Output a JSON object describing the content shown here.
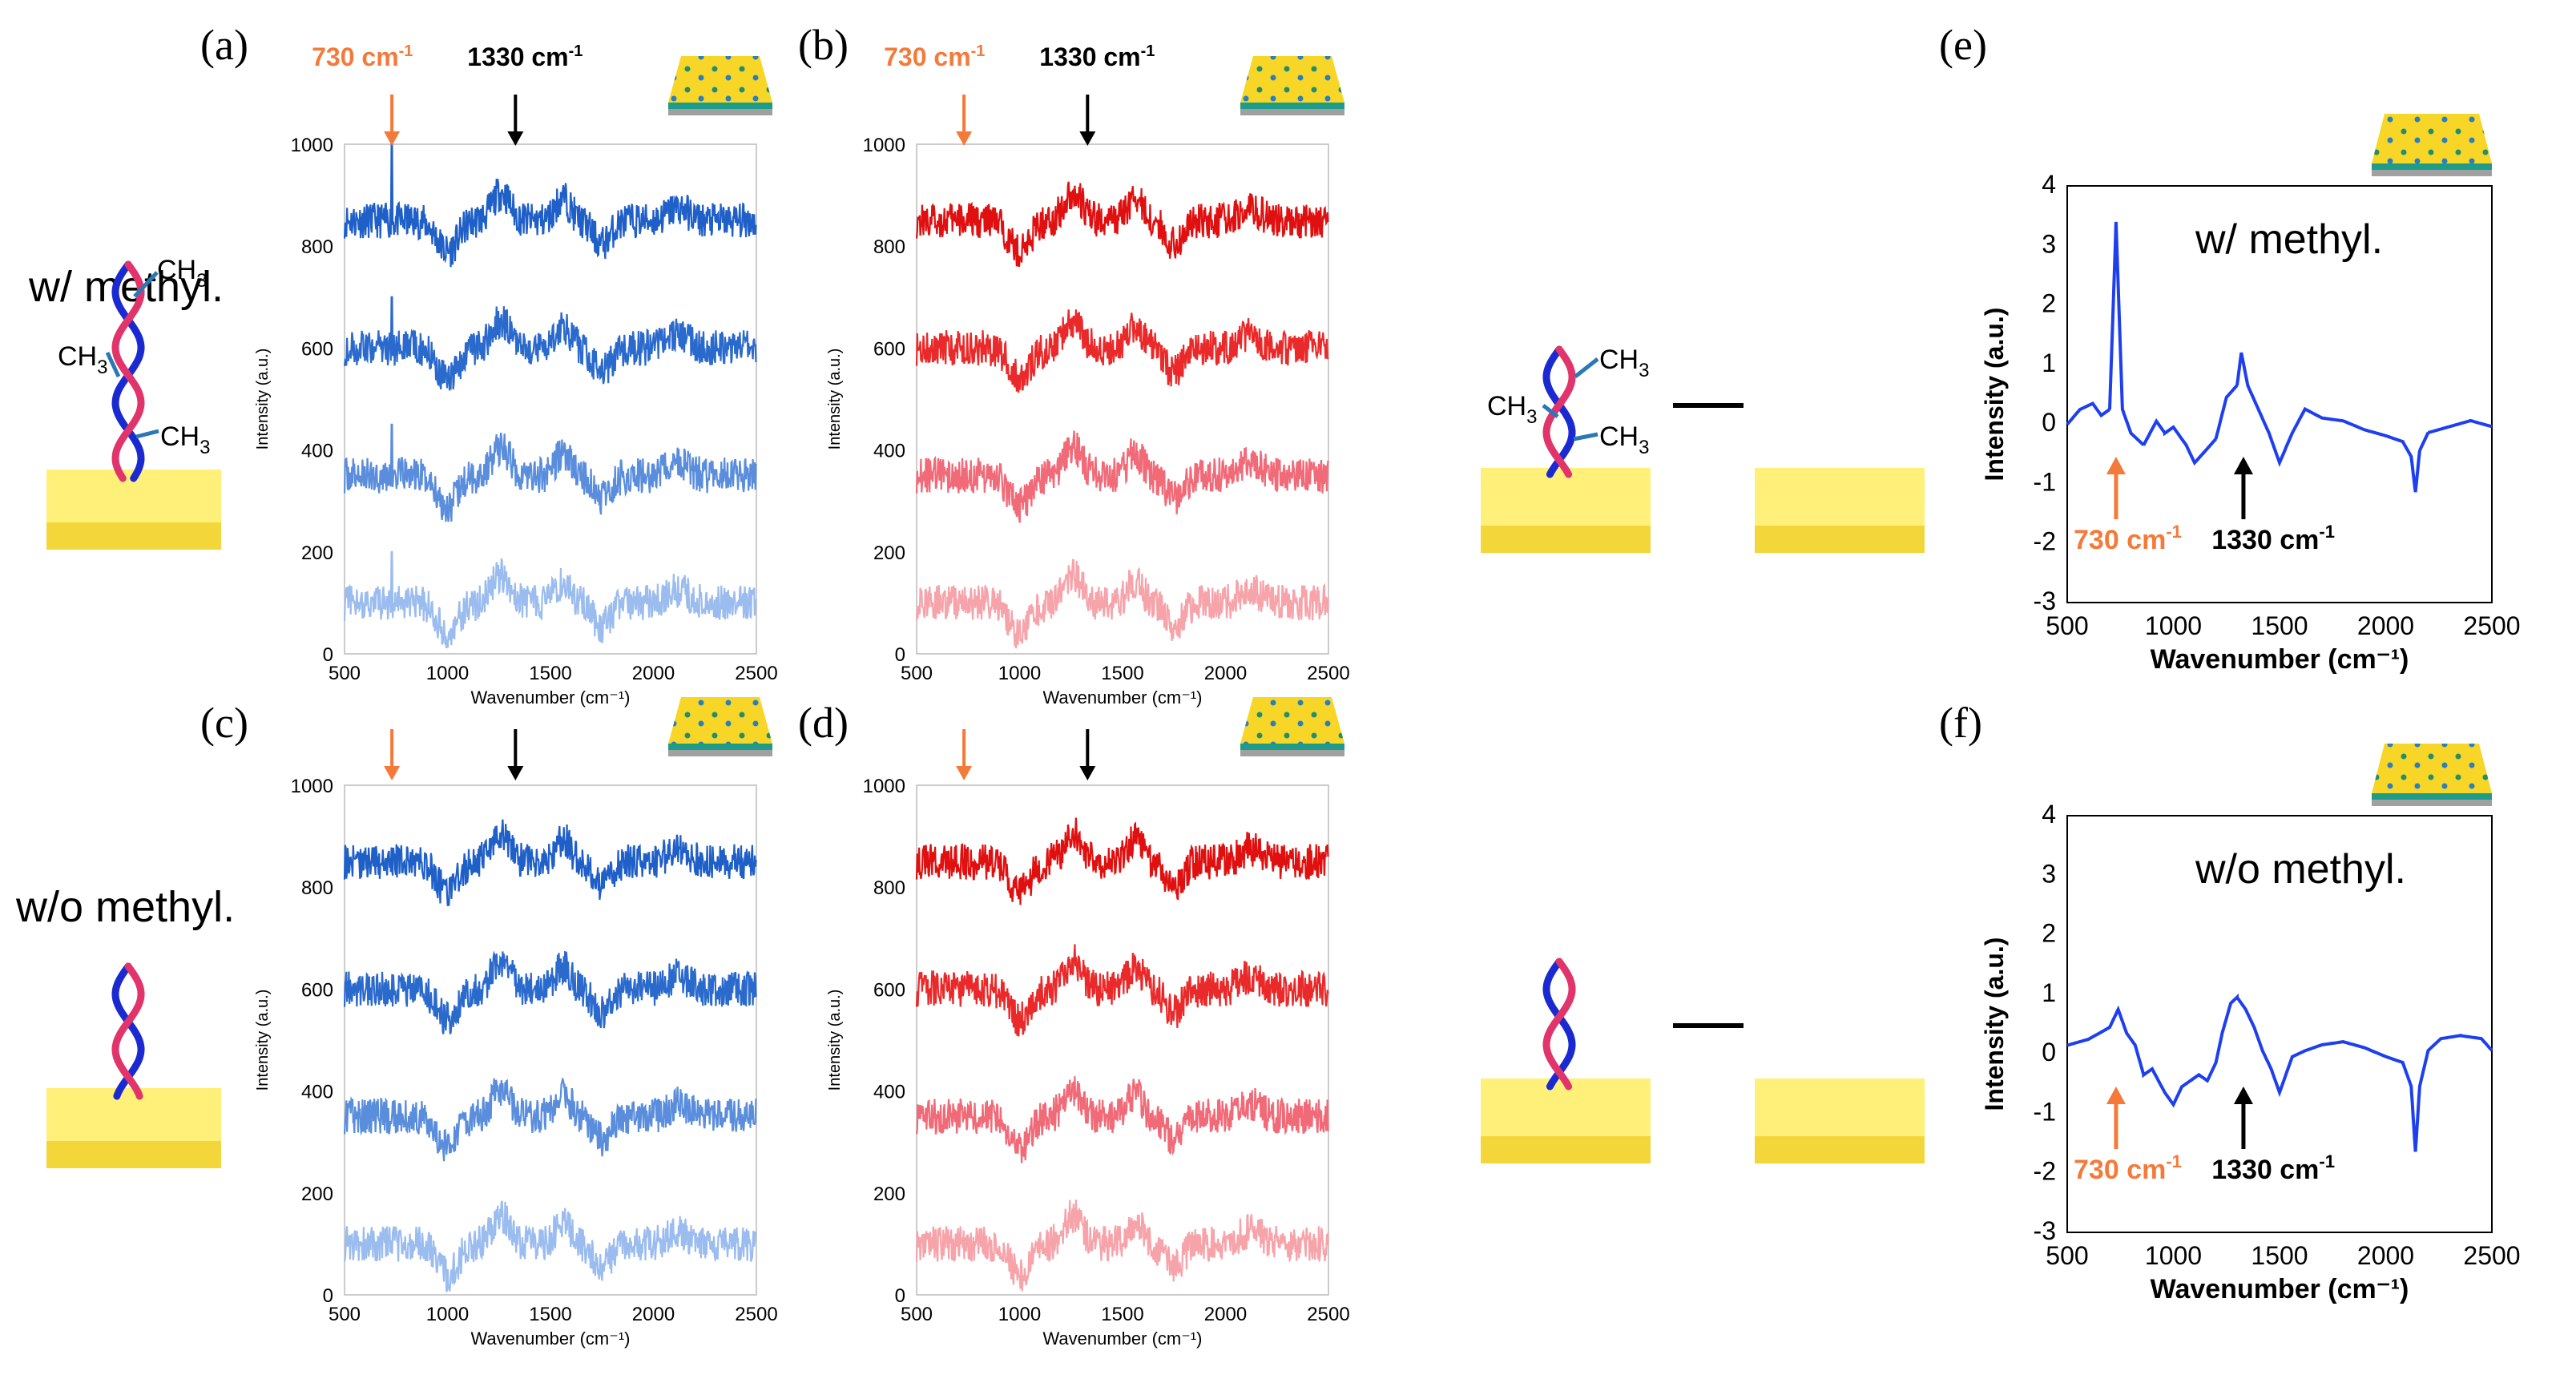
{
  "labels": {
    "with_methyl": "w/ methyl.",
    "without_methyl": "w/o methyl.",
    "ch3": "CH",
    "ch3_sub": "3",
    "peak_730": "730 cm",
    "peak_1330": "1330 cm",
    "peak_sup": "-1"
  },
  "colors": {
    "blue_dark": "#1f5fc8",
    "blue_mid": "#3a78d6",
    "blue_light": "#9bbcef",
    "red_dark": "#e01010",
    "red_mid": "#f04848",
    "red_light": "#f6a3aa",
    "diff_blue": "#1e3ff0",
    "orange": "#f47a3a",
    "gold": "#f7d94a",
    "gold_light": "#fff07a",
    "gold_dark": "#efcf2e"
  },
  "chart_data": [
    {
      "panel": "(a)",
      "type": "line",
      "xlabel": "Wavenumber (cm⁻¹)",
      "ylabel": "Intensity (a.u.)",
      "xlim": [
        500,
        2500
      ],
      "ylim": [
        0,
        1000
      ],
      "xticks": [
        "500",
        "1000",
        "1500",
        "2000",
        "2500"
      ],
      "yticks": [
        "0",
        "200",
        "400",
        "600",
        "800",
        "1000"
      ],
      "spike_at": 730,
      "series": [
        {
          "offset": 850,
          "color": "#1f5fc8"
        },
        {
          "offset": 600,
          "color": "#2b6acd"
        },
        {
          "offset": 350,
          "color": "#5a8edc"
        },
        {
          "offset": 100,
          "color": "#9bbcef"
        }
      ]
    },
    {
      "panel": "(b)",
      "type": "line",
      "xlabel": "Wavenumber (cm⁻¹)",
      "ylabel": "Intensity (a.u.)",
      "xlim": [
        500,
        2500
      ],
      "ylim": [
        0,
        1000
      ],
      "xticks": [
        "500",
        "1000",
        "1500",
        "2000",
        "2500"
      ],
      "yticks": [
        "0",
        "200",
        "400",
        "600",
        "800",
        "1000"
      ],
      "series": [
        {
          "offset": 850,
          "color": "#e01010"
        },
        {
          "offset": 600,
          "color": "#ea2a2a"
        },
        {
          "offset": 350,
          "color": "#f06a78"
        },
        {
          "offset": 100,
          "color": "#f6a3aa"
        }
      ]
    },
    {
      "panel": "(c)",
      "type": "line",
      "xlabel": "Wavenumber (cm⁻¹)",
      "ylabel": "Intensity (a.u.)",
      "xlim": [
        500,
        2500
      ],
      "ylim": [
        0,
        1000
      ],
      "xticks": [
        "500",
        "1000",
        "1500",
        "2000",
        "2500"
      ],
      "yticks": [
        "0",
        "200",
        "400",
        "600",
        "800",
        "1000"
      ],
      "series": [
        {
          "offset": 850,
          "color": "#1f5fc8"
        },
        {
          "offset": 600,
          "color": "#2b6acd"
        },
        {
          "offset": 350,
          "color": "#5a8edc"
        },
        {
          "offset": 100,
          "color": "#9bbcef"
        }
      ]
    },
    {
      "panel": "(d)",
      "type": "line",
      "xlabel": "Wavenumber (cm⁻¹)",
      "ylabel": "Intensity (a.u.)",
      "xlim": [
        500,
        2500
      ],
      "ylim": [
        0,
        1000
      ],
      "xticks": [
        "500",
        "1000",
        "1500",
        "2000",
        "2500"
      ],
      "yticks": [
        "0",
        "200",
        "400",
        "600",
        "800",
        "1000"
      ],
      "series": [
        {
          "offset": 850,
          "color": "#e01010"
        },
        {
          "offset": 600,
          "color": "#ea2a2a"
        },
        {
          "offset": 350,
          "color": "#f06a78"
        },
        {
          "offset": 100,
          "color": "#f6a3aa"
        }
      ]
    },
    {
      "panel": "(e)",
      "type": "line",
      "title": "w/ methyl.",
      "xlabel": "Wavenumber (cm⁻¹)",
      "ylabel": "Intensity (a.u.)",
      "xlim": [
        500,
        2500
      ],
      "ylim": [
        -3,
        4
      ],
      "xticks": [
        "500",
        "1000",
        "1500",
        "2000",
        "2500"
      ],
      "yticks": [
        "-3",
        "-2",
        "-1",
        "0",
        "1",
        "2",
        "3",
        "4"
      ],
      "series": [
        {
          "color": "#1e3ff0",
          "points": [
            [
              500,
              0.05
            ],
            [
              560,
              0.3
            ],
            [
              620,
              0.4
            ],
            [
              660,
              0.2
            ],
            [
              700,
              0.3
            ],
            [
              730,
              3.45
            ],
            [
              760,
              0.3
            ],
            [
              800,
              -0.1
            ],
            [
              860,
              -0.3
            ],
            [
              920,
              0.1
            ],
            [
              960,
              -0.1
            ],
            [
              1000,
              0.0
            ],
            [
              1060,
              -0.3
            ],
            [
              1100,
              -0.6
            ],
            [
              1150,
              -0.4
            ],
            [
              1200,
              -0.2
            ],
            [
              1250,
              0.5
            ],
            [
              1300,
              0.7
            ],
            [
              1320,
              1.25
            ],
            [
              1350,
              0.7
            ],
            [
              1400,
              0.3
            ],
            [
              1450,
              -0.1
            ],
            [
              1500,
              -0.6
            ],
            [
              1560,
              -0.1
            ],
            [
              1620,
              0.3
            ],
            [
              1700,
              0.15
            ],
            [
              1800,
              0.1
            ],
            [
              1900,
              -0.05
            ],
            [
              2000,
              -0.15
            ],
            [
              2080,
              -0.25
            ],
            [
              2120,
              -0.5
            ],
            [
              2140,
              -1.1
            ],
            [
              2160,
              -0.4
            ],
            [
              2200,
              -0.1
            ],
            [
              2300,
              0.0
            ],
            [
              2400,
              0.1
            ],
            [
              2500,
              0.0
            ]
          ]
        }
      ]
    },
    {
      "panel": "(f)",
      "type": "line",
      "title": "w/o methyl.",
      "xlabel": "Wavenumber (cm⁻¹)",
      "ylabel": "Intensity (a.u.)",
      "xlim": [
        500,
        2500
      ],
      "ylim": [
        -3,
        4
      ],
      "xticks": [
        "500",
        "1000",
        "1500",
        "2000",
        "2500"
      ],
      "yticks": [
        "-3",
        "-2",
        "-1",
        "0",
        "1",
        "2",
        "3",
        "4"
      ],
      "series": [
        {
          "color": "#1e3ff0",
          "points": [
            [
              500,
              0.2
            ],
            [
              600,
              0.3
            ],
            [
              700,
              0.5
            ],
            [
              740,
              0.8
            ],
            [
              780,
              0.4
            ],
            [
              820,
              0.2
            ],
            [
              860,
              -0.3
            ],
            [
              900,
              -0.2
            ],
            [
              960,
              -0.6
            ],
            [
              1000,
              -0.8
            ],
            [
              1040,
              -0.5
            ],
            [
              1080,
              -0.4
            ],
            [
              1120,
              -0.3
            ],
            [
              1160,
              -0.4
            ],
            [
              1200,
              -0.1
            ],
            [
              1230,
              0.4
            ],
            [
              1270,
              0.9
            ],
            [
              1300,
              1.0
            ],
            [
              1340,
              0.8
            ],
            [
              1380,
              0.5
            ],
            [
              1420,
              0.1
            ],
            [
              1460,
              -0.2
            ],
            [
              1500,
              -0.6
            ],
            [
              1530,
              -0.3
            ],
            [
              1560,
              0.0
            ],
            [
              1620,
              0.1
            ],
            [
              1700,
              0.2
            ],
            [
              1800,
              0.25
            ],
            [
              1900,
              0.15
            ],
            [
              2000,
              0.0
            ],
            [
              2080,
              -0.1
            ],
            [
              2120,
              -0.5
            ],
            [
              2140,
              -1.6
            ],
            [
              2160,
              -0.5
            ],
            [
              2200,
              0.1
            ],
            [
              2260,
              0.3
            ],
            [
              2350,
              0.35
            ],
            [
              2450,
              0.3
            ],
            [
              2500,
              0.1
            ]
          ]
        }
      ]
    }
  ]
}
